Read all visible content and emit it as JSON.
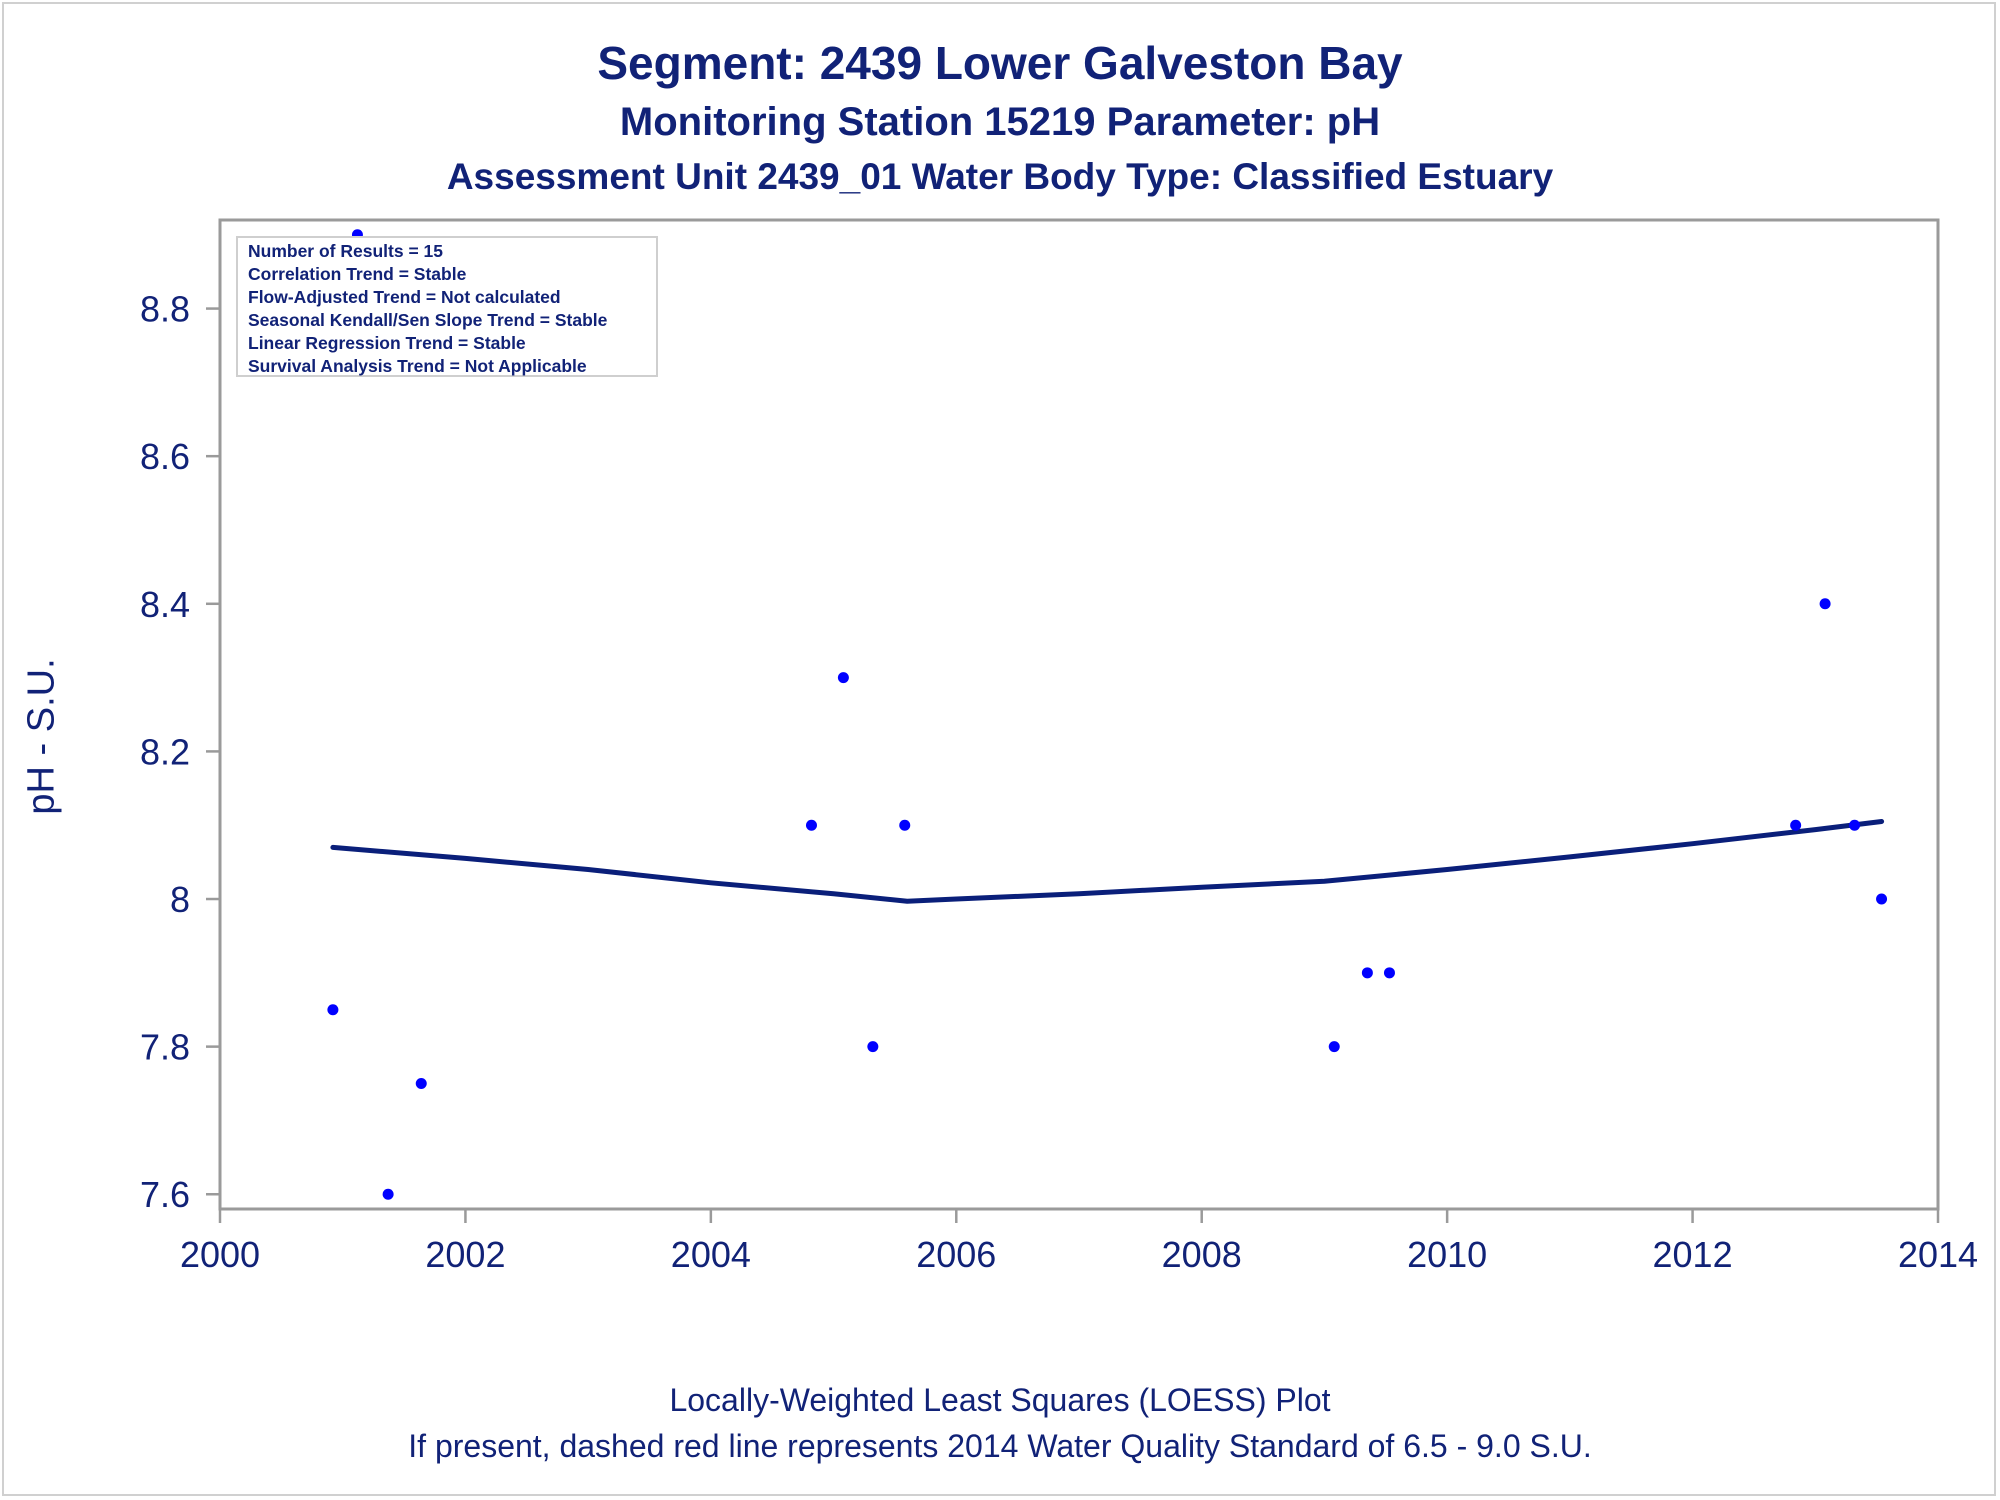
{
  "title": "Segment: 2439  Lower Galveston Bay",
  "subtitle": "Monitoring Station 15219 Parameter: pH",
  "subtitle2": "Assessment Unit 2439_01   Water Body Type: Classified Estuary",
  "footnote1": "Locally-Weighted Least Squares (LOESS) Plot",
  "footnote2": "If present, dashed red line represents 2014 Water Quality Standard of 6.5 - 9.0 S.U.",
  "stats": [
    "Number of Results = 15",
    "Correlation Trend = Stable",
    "Flow-Adjusted Trend = Not calculated",
    "Seasonal Kendall/Sen Slope Trend = Stable",
    "Linear Regression Trend = Stable",
    "Survival Analysis Trend = Not Applicable"
  ],
  "colors": {
    "text": "#112277",
    "points": "#0000ff",
    "loess": "#0a1f7a",
    "axis": "#9a9a9a"
  },
  "chart_data": {
    "type": "scatter",
    "xlabel": "",
    "ylabel": "pH - S.U.",
    "xlim": [
      2000,
      2014
    ],
    "ylim": [
      7.58,
      8.92
    ],
    "x_ticks": [
      2000,
      2002,
      2004,
      2006,
      2008,
      2010,
      2012,
      2014
    ],
    "y_ticks": [
      7.6,
      7.8,
      8,
      8.2,
      8.4,
      8.6,
      8.8
    ],
    "y_tick_labels": [
      "7.6",
      "7.8",
      "8",
      "8.2",
      "8.4",
      "8.6",
      "8.8"
    ],
    "grid": false,
    "points": [
      {
        "x": 2000.92,
        "y": 7.85
      },
      {
        "x": 2001.12,
        "y": 8.9
      },
      {
        "x": 2001.37,
        "y": 7.6
      },
      {
        "x": 2001.64,
        "y": 7.75
      },
      {
        "x": 2004.82,
        "y": 8.1
      },
      {
        "x": 2005.08,
        "y": 8.3
      },
      {
        "x": 2005.32,
        "y": 7.8
      },
      {
        "x": 2005.58,
        "y": 8.1
      },
      {
        "x": 2009.08,
        "y": 7.8
      },
      {
        "x": 2009.35,
        "y": 7.9
      },
      {
        "x": 2009.53,
        "y": 7.9
      },
      {
        "x": 2012.84,
        "y": 8.1
      },
      {
        "x": 2013.08,
        "y": 8.4
      },
      {
        "x": 2013.32,
        "y": 8.1
      },
      {
        "x": 2013.54,
        "y": 8.0
      }
    ],
    "loess": [
      {
        "x": 2000.92,
        "y": 8.07
      },
      {
        "x": 2002.0,
        "y": 8.055
      },
      {
        "x": 2003.0,
        "y": 8.04
      },
      {
        "x": 2004.0,
        "y": 8.022
      },
      {
        "x": 2005.0,
        "y": 8.007
      },
      {
        "x": 2005.6,
        "y": 7.997
      },
      {
        "x": 2006.0,
        "y": 8.0
      },
      {
        "x": 2007.0,
        "y": 8.007
      },
      {
        "x": 2008.0,
        "y": 8.016
      },
      {
        "x": 2009.0,
        "y": 8.024
      },
      {
        "x": 2010.0,
        "y": 8.04
      },
      {
        "x": 2011.0,
        "y": 8.057
      },
      {
        "x": 2012.0,
        "y": 8.075
      },
      {
        "x": 2013.0,
        "y": 8.094
      },
      {
        "x": 2013.54,
        "y": 8.105
      }
    ]
  }
}
